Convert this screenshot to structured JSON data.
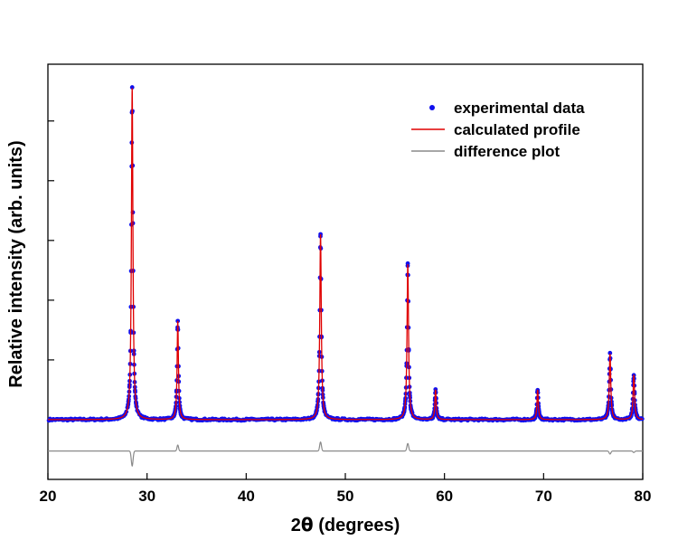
{
  "chart_data": {
    "type": "line",
    "title": "",
    "xlabel": "2θ (degrees)",
    "xlabel_parts": {
      "prefix": "2",
      "theta": "θ",
      "suffix": " (degrees)"
    },
    "ylabel": "Relative intensity (arb. units)",
    "xlim": [
      20,
      80
    ],
    "ylim": [
      -0.2,
      1.19
    ],
    "x_ticks": [
      20,
      30,
      40,
      50,
      60,
      70,
      80
    ],
    "x_tick_labels": [
      "20",
      "30",
      "40",
      "50",
      "60",
      "70",
      "80"
    ],
    "y_tick_values": [
      0.2,
      0.4,
      0.6,
      0.8,
      1.0
    ],
    "y_tick_labels_shown": false,
    "grid": false,
    "legend_position": "top-right",
    "baseline": 0.0,
    "difference_offset": -0.105,
    "peaks": [
      {
        "position": 28.5,
        "intensity": 1.11,
        "width": 0.09,
        "diff": -0.05
      },
      {
        "position": 33.1,
        "intensity": 0.33,
        "width": 0.08,
        "diff": 0.02
      },
      {
        "position": 47.5,
        "intensity": 0.62,
        "width": 0.09,
        "diff": 0.03
      },
      {
        "position": 56.3,
        "intensity": 0.52,
        "width": 0.09,
        "diff": 0.025
      },
      {
        "position": 59.1,
        "intensity": 0.1,
        "width": 0.08,
        "diff": 0.0
      },
      {
        "position": 69.4,
        "intensity": 0.1,
        "width": 0.08,
        "diff": 0.0
      },
      {
        "position": 76.7,
        "intensity": 0.22,
        "width": 0.09,
        "diff": -0.01
      },
      {
        "position": 79.1,
        "intensity": 0.15,
        "width": 0.09,
        "diff": -0.005
      }
    ],
    "series": [
      {
        "name": "experimental data",
        "kind": "markers",
        "color": "#1010ee"
      },
      {
        "name": "calculated profile",
        "kind": "line",
        "color": "#e00000"
      },
      {
        "name": "difference plot",
        "kind": "line",
        "color": "#8a8a8a"
      }
    ]
  }
}
